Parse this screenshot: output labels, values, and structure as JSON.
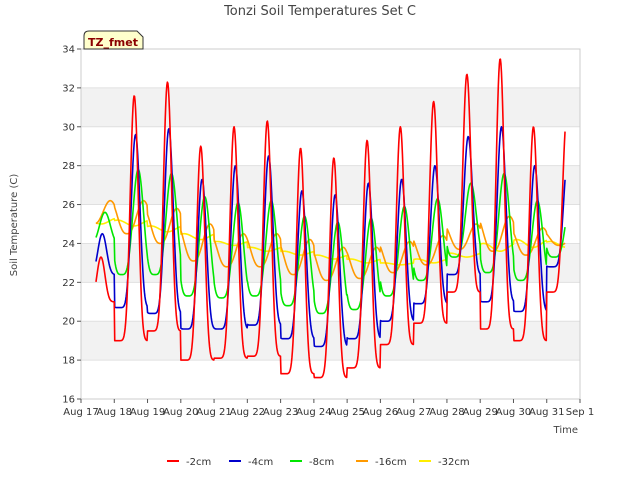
{
  "chart_data": {
    "type": "line",
    "title": "Tonzi Soil Temperatures Set C",
    "xlabel": "Time",
    "ylabel": "Soil Temperature (C)",
    "badge": "TZ_fmet",
    "xlim": [
      "Aug 17",
      "Sep 1"
    ],
    "ylim": [
      16,
      34
    ],
    "x_ticks": [
      "Aug 17",
      "Aug 18",
      "Aug 19",
      "Aug 20",
      "Aug 21",
      "Aug 22",
      "Aug 23",
      "Aug 24",
      "Aug 25",
      "Aug 26",
      "Aug 27",
      "Aug 28",
      "Aug 29",
      "Aug 30",
      "Aug 31",
      "Sep 1"
    ],
    "y_ticks": [
      16,
      18,
      20,
      22,
      24,
      26,
      28,
      30,
      32,
      34
    ],
    "grid": "horizontal bands",
    "legend_position": "bottom",
    "colors": {
      "-2cm": "#ff0000",
      "-4cm": "#0000cc",
      "-8cm": "#00e600",
      "-16cm": "#ff9900",
      "-32cm": "#ffee00"
    },
    "days": [
      "Aug 17",
      "Aug 18",
      "Aug 19",
      "Aug 20",
      "Aug 21",
      "Aug 22",
      "Aug 23",
      "Aug 24",
      "Aug 25",
      "Aug 26",
      "Aug 27",
      "Aug 28",
      "Aug 29",
      "Aug 30",
      "Aug 31"
    ],
    "series": [
      {
        "name": "-2cm",
        "daily_min": [
          21.0,
          19.0,
          19.5,
          18.0,
          18.1,
          18.2,
          17.3,
          17.1,
          17.6,
          18.8,
          19.9,
          21.5,
          19.6,
          19.0,
          21.5
        ],
        "daily_max": [
          23.3,
          31.6,
          32.3,
          29.0,
          30.0,
          30.3,
          28.9,
          28.4,
          29.3,
          30.0,
          31.3,
          32.7,
          33.5,
          30.0,
          30.5
        ]
      },
      {
        "name": "-4cm",
        "daily_min": [
          22.4,
          20.7,
          20.4,
          19.6,
          19.6,
          19.8,
          19.1,
          18.7,
          19.1,
          20.0,
          20.9,
          22.4,
          21.0,
          20.5,
          22.8
        ],
        "daily_max": [
          24.5,
          29.6,
          29.9,
          27.3,
          28.0,
          28.5,
          26.7,
          26.5,
          27.1,
          27.3,
          28.0,
          29.5,
          30.0,
          28.0,
          28.5
        ]
      },
      {
        "name": "-8cm",
        "daily_min": [
          24.0,
          22.4,
          22.4,
          21.3,
          21.2,
          21.3,
          20.8,
          20.4,
          20.6,
          21.3,
          22.1,
          23.3,
          22.5,
          22.1,
          23.3
        ],
        "daily_max": [
          25.6,
          27.8,
          27.6,
          26.4,
          26.1,
          26.2,
          25.4,
          25.1,
          25.3,
          25.9,
          26.3,
          27.1,
          27.6,
          26.2,
          26.1
        ]
      },
      {
        "name": "-16cm",
        "daily_min": [
          25.0,
          24.5,
          24.0,
          23.1,
          22.8,
          22.8,
          22.4,
          22.1,
          22.2,
          22.5,
          22.9,
          23.7,
          23.6,
          23.4,
          23.9
        ],
        "daily_max": [
          26.2,
          26.2,
          25.8,
          25.0,
          24.5,
          24.5,
          24.2,
          23.8,
          23.8,
          24.1,
          24.4,
          25.0,
          25.4,
          24.8,
          24.6
        ]
      },
      {
        "name": "-32cm",
        "daily_min": [
          25.0,
          24.9,
          24.6,
          24.2,
          23.9,
          23.6,
          23.4,
          23.2,
          23.0,
          22.9,
          23.0,
          23.3,
          23.6,
          23.8,
          23.8
        ],
        "daily_max": [
          25.3,
          25.2,
          24.9,
          24.5,
          24.1,
          23.8,
          23.6,
          23.4,
          23.2,
          23.0,
          23.2,
          23.5,
          24.0,
          24.2,
          24.1
        ]
      }
    ]
  }
}
